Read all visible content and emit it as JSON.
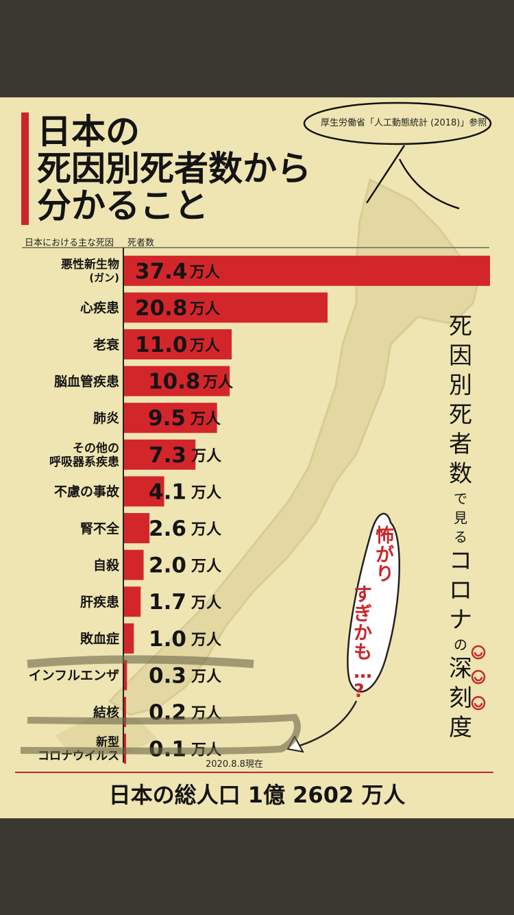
{
  "title": {
    "line1": "日本の",
    "line2": "死因別死者数から",
    "line3": "分かること"
  },
  "source_note": "厚生労働省「人工動態統計 (2018)」参照",
  "column_headers": {
    "cause": "日本における主な死因",
    "deaths": "死者数"
  },
  "unit": "万人",
  "chart_data": {
    "type": "bar",
    "orientation": "horizontal",
    "categories": [
      [
        "悪性新生物",
        "(ガン)"
      ],
      [
        "心疾患"
      ],
      [
        "老衰"
      ],
      [
        "脳血管疾患"
      ],
      [
        "肺炎"
      ],
      [
        "その他の",
        "呼吸器系疾患"
      ],
      [
        "不慮の事故"
      ],
      [
        "腎不全"
      ],
      [
        "自殺"
      ],
      [
        "肝疾患"
      ],
      [
        "敗血症"
      ],
      [
        "インフルエンザ"
      ],
      [
        "結核"
      ],
      [
        "新型",
        "コロナウイルス"
      ]
    ],
    "values": [
      37.4,
      20.8,
      11.0,
      10.8,
      9.5,
      7.3,
      4.1,
      2.6,
      2.0,
      1.7,
      1.0,
      0.3,
      0.2,
      0.1
    ],
    "value_labels": [
      "37.4",
      "20.8",
      "11.0",
      "10.8",
      "9.5",
      "7.3",
      "4.1",
      "2.6",
      "2.0",
      "1.7",
      "1.0",
      "0.3",
      "0.2",
      "0.1"
    ],
    "xlim": [
      0,
      37.4
    ],
    "bar_color": "#d3262b"
  },
  "side_text": [
    "死",
    "因",
    "別",
    "死",
    "者",
    "数",
    "で",
    "見",
    "る",
    "コ",
    "ロ",
    "ナ",
    "の",
    "深",
    "刻",
    "度"
  ],
  "side_text_small": [
    false,
    false,
    false,
    false,
    false,
    false,
    true,
    true,
    true,
    false,
    false,
    false,
    true,
    false,
    false,
    false
  ],
  "annotation": {
    "line1": "怖がり",
    "line2": "すぎかも…?"
  },
  "date_note": "2020.8.8現在",
  "total_population": "日本の総人口 1億 2602 万人",
  "colors": {
    "accent": "#c8262b",
    "background": "#efe5b2",
    "frame": "#3b3832"
  }
}
